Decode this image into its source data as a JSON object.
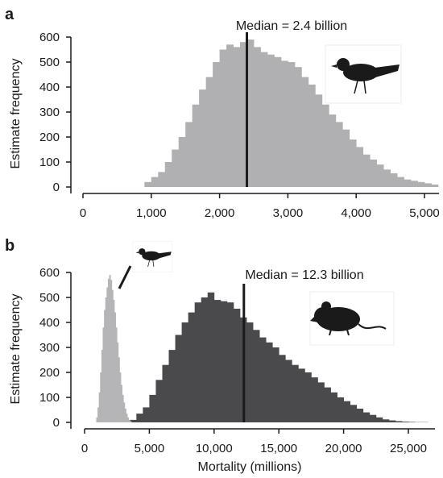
{
  "chart_data": [
    {
      "panel_label": "a",
      "type": "bar",
      "ylabel": "Estimate frequency",
      "xlabel": "",
      "xlim": [
        0,
        5200
      ],
      "ylim": [
        0,
        600
      ],
      "xticks": [
        "0",
        "1,000",
        "2,000",
        "3,000",
        "4,000",
        "5,000"
      ],
      "yticks": [
        "0",
        "100",
        "200",
        "300",
        "400",
        "500",
        "600"
      ],
      "bin_width": 100,
      "median_value": 2400,
      "median_label": "Median = 2.4 billion",
      "icons": [
        "bird-icon"
      ],
      "series": [
        {
          "color": "#b0b0b2",
          "bins_start": 900,
          "values": [
            20,
            40,
            60,
            100,
            150,
            200,
            260,
            330,
            390,
            440,
            500,
            550,
            570,
            560,
            580,
            590,
            560,
            540,
            530,
            520,
            505,
            500,
            480,
            440,
            410,
            370,
            330,
            290,
            260,
            230,
            190,
            160,
            130,
            110,
            90,
            70,
            55,
            40,
            30,
            25,
            20,
            15,
            10
          ]
        }
      ]
    },
    {
      "panel_label": "b",
      "type": "bar",
      "ylabel": "Estimate frequency",
      "xlabel": "Mortality (millions)",
      "xlim": [
        0,
        27000
      ],
      "ylim": [
        0,
        600
      ],
      "xticks": [
        "0",
        "5,000",
        "10,000",
        "15,000",
        "20,000",
        "25,000"
      ],
      "yticks": [
        "0",
        "100",
        "200",
        "300",
        "400",
        "500",
        "600"
      ],
      "bin_width": 500,
      "median_value": 12300,
      "median_label": "Median = 12.3 billion",
      "icons": [
        "bird-icon",
        "mouse-icon"
      ],
      "series": [
        {
          "color": "#4a4a4c",
          "bins_start": 3500,
          "values": [
            10,
            35,
            60,
            110,
            170,
            230,
            290,
            350,
            400,
            440,
            480,
            500,
            520,
            490,
            485,
            480,
            455,
            420,
            400,
            370,
            340,
            320,
            300,
            270,
            250,
            230,
            215,
            200,
            180,
            160,
            140,
            120,
            100,
            85,
            70,
            55,
            40,
            30,
            20,
            12,
            8,
            5,
            3,
            2,
            1,
            1,
            0
          ]
        },
        {
          "color": "#b5b5b7",
          "bins_start": 900,
          "bin_width": 100,
          "values": [
            20,
            60,
            120,
            200,
            290,
            380,
            450,
            500,
            540,
            575,
            590,
            570,
            530,
            490,
            440,
            380,
            320,
            260,
            200,
            150,
            110,
            80,
            55,
            35,
            20,
            10,
            5
          ]
        }
      ]
    }
  ]
}
